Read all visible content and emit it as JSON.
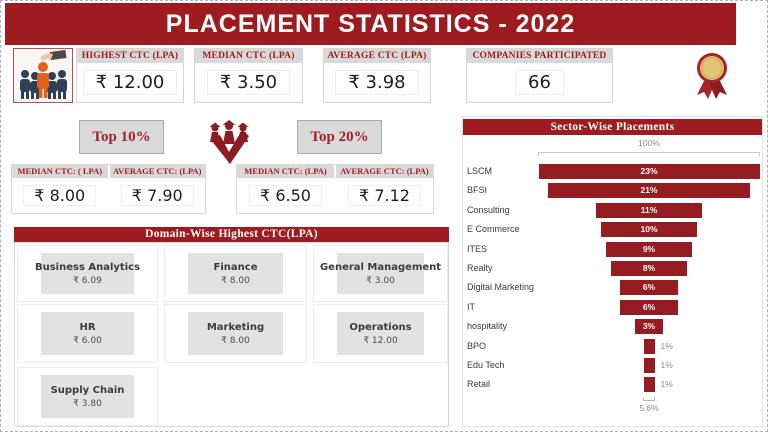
{
  "title": "PLACEMENT STATISTICS - 2022",
  "colors": {
    "accent_maroon": "#9E1B20",
    "bar_maroon": "#951C21",
    "header_gray": "#D9D9D9",
    "red_text": "#A21F2A"
  },
  "icons": [
    "people-selection-icon",
    "award-medal-icon",
    "team-checkmark-icon"
  ],
  "kpis": [
    {
      "label": "HIGHEST CTC (LPA)",
      "value": "₹ 12.00"
    },
    {
      "label": "MEDIAN CTC (LPA)",
      "value": "₹ 3.50"
    },
    {
      "label": "AVERAGE CTC (LPA)",
      "value": "₹ 3.98"
    },
    {
      "label": "COMPANIES PARTICIPATED",
      "value": "66"
    }
  ],
  "top_groups": [
    {
      "badge": "Top 10%",
      "stats": [
        {
          "label": "MEDIAN CTC: ( LPA)",
          "value": "₹ 8.00"
        },
        {
          "label": "AVERAGE CTC: (LPA)",
          "value": "₹ 7.90"
        }
      ]
    },
    {
      "badge": "Top 20%",
      "stats": [
        {
          "label": "MEDIAN CTC: (LPA)",
          "value": "₹ 6.50"
        },
        {
          "label": "AVERAGE CTC: (LPA)",
          "value": "₹ 7.12"
        }
      ]
    }
  ],
  "domain_section": {
    "title": "Domain-Wise Highest CTC(LPA)",
    "cards": [
      {
        "name": "Business Analytics",
        "value": "₹ 6.09"
      },
      {
        "name": "Finance",
        "value": "₹ 8.00"
      },
      {
        "name": "General Management",
        "value": "₹ 3.00"
      },
      {
        "name": "HR",
        "value": "₹ 6.00"
      },
      {
        "name": "Marketing",
        "value": "₹ 8.00"
      },
      {
        "name": "Operations",
        "value": "₹ 12.00"
      },
      {
        "name": "Supply Chain",
        "value": "₹ 3.80"
      }
    ]
  },
  "chart_data": {
    "type": "bar",
    "variant": "funnel-centered",
    "title": "Sector-Wise Placements",
    "categories": [
      "LSCM",
      "BFSI",
      "Consulting",
      "E Commerce",
      "ITES",
      "Realty",
      "Digital Marketing",
      "IT",
      "hospitality",
      "BPO",
      "Edu Tech",
      "Retail"
    ],
    "values": [
      23,
      21,
      11,
      10,
      9,
      8,
      6,
      6,
      3,
      1,
      1,
      1
    ],
    "value_suffix": "%",
    "top_annotation": "100%",
    "bottom_annotation": "5.6%",
    "bar_color": "#951C21",
    "legend": "none",
    "grid": false
  }
}
